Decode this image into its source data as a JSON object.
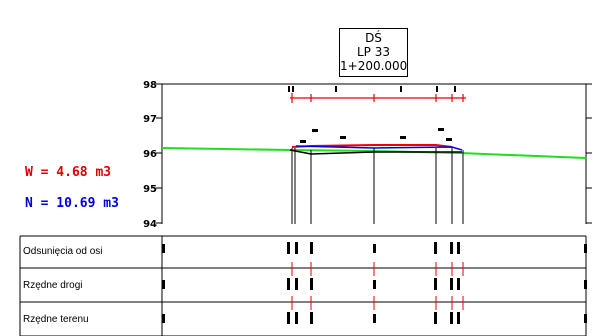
{
  "section": {
    "line1": "DŚ",
    "line2": "LP 33",
    "line3": "1+200.000"
  },
  "volumes": {
    "w_label": "W = 4.68 m3",
    "n_label": "N = 10.69 m3"
  },
  "colors": {
    "terrain": "#22dd22",
    "road": "#ee0000",
    "axis": "#0000ee",
    "structure": "#000000"
  },
  "axis": {
    "ticks": [
      "98",
      "97",
      "96",
      "95",
      "94"
    ]
  },
  "table": {
    "rows": [
      {
        "label": "Odsunięcia od osi"
      },
      {
        "label": "Rzędne drogi"
      },
      {
        "label": "Rzędne terenu"
      }
    ]
  }
}
